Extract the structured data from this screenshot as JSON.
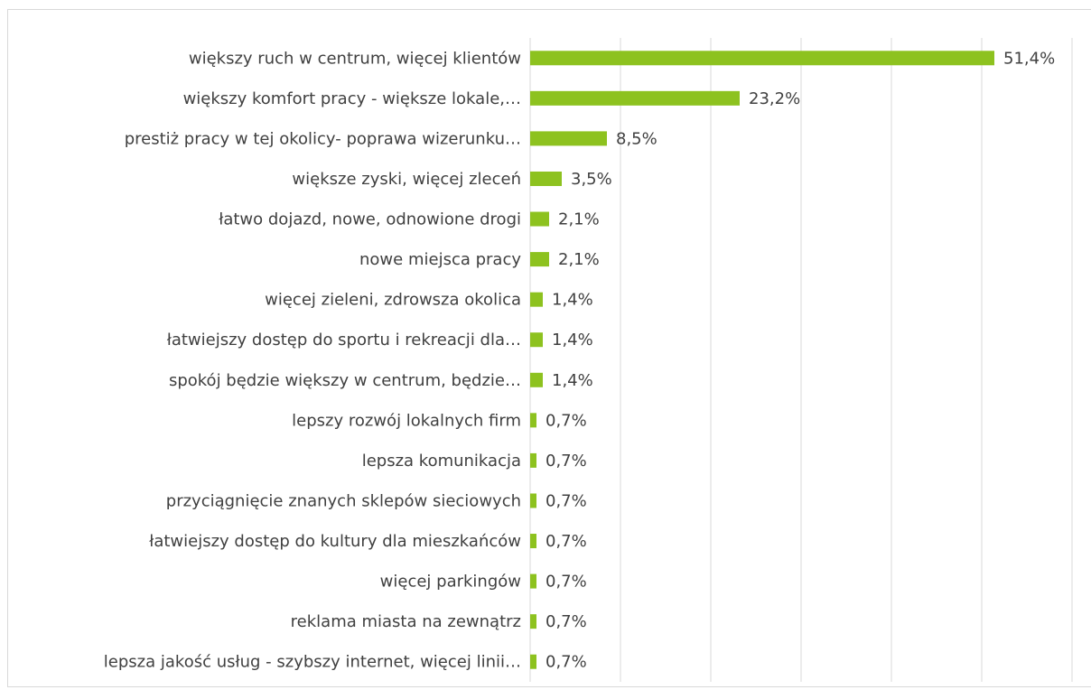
{
  "chart_data": {
    "type": "bar",
    "orientation": "horizontal",
    "categories": [
      "większy ruch w centrum, więcej klientów",
      "większy komfort pracy - większe lokale,…",
      "prestiż pracy w tej okolicy- poprawa wizerunku…",
      "większe zyski, więcej zleceń",
      "łatwo dojazd, nowe, odnowione drogi",
      "nowe miejsca pracy",
      "więcej zieleni, zdrowsza okolica",
      "łatwiejszy dostęp do sportu i rekreacji dla…",
      "spokój będzie większy w centrum, będzie…",
      "lepszy rozwój lokalnych firm",
      "lepsza komunikacja",
      "przyciągnięcie znanych sklepów sieciowych",
      "łatwiejszy dostęp do kultury dla mieszkańców",
      "więcej parkingów",
      "reklama miasta na zewnątrz",
      "lepsza jakość usług - szybszy internet, więcej linii…"
    ],
    "values": [
      51.4,
      23.2,
      8.5,
      3.5,
      2.1,
      2.1,
      1.4,
      1.4,
      1.4,
      0.7,
      0.7,
      0.7,
      0.7,
      0.7,
      0.7,
      0.7
    ],
    "value_labels": [
      "51,4%",
      "23,2%",
      "8,5%",
      "3,5%",
      "2,1%",
      "2,1%",
      "1,4%",
      "1,4%",
      "1,4%",
      "0,7%",
      "0,7%",
      "0,7%",
      "0,7%",
      "0,7%",
      "0,7%",
      "0,7%"
    ],
    "color": "#8dc21f",
    "xlim": [
      0,
      60
    ],
    "xticks": [
      0,
      10,
      20,
      30,
      40,
      50,
      60
    ],
    "grid": true
  }
}
